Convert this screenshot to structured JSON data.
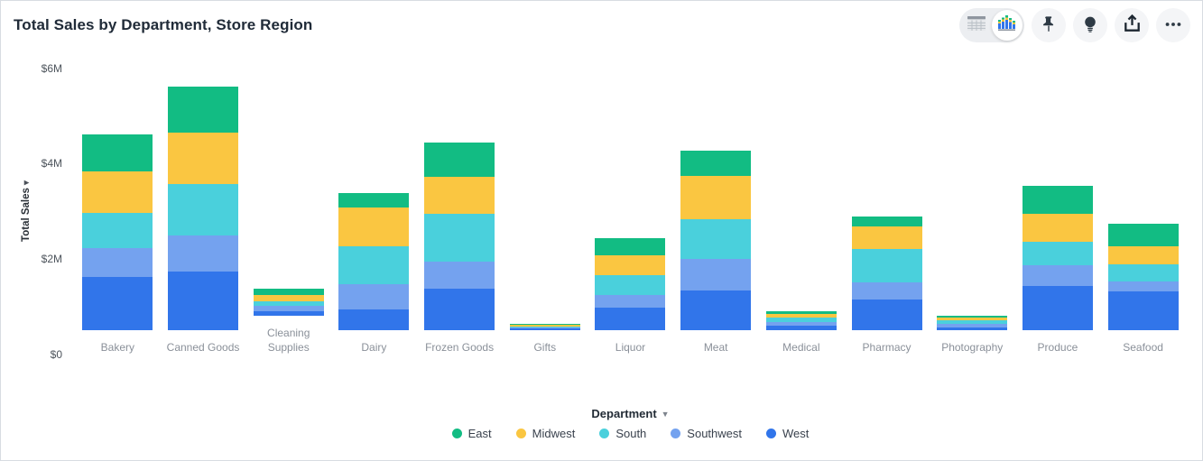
{
  "header": {
    "title": "Total Sales by Department, Store Region"
  },
  "toolbar": {
    "view_toggle": {
      "options": [
        "table-view",
        "chart-view"
      ],
      "selected": "chart-view"
    },
    "buttons": [
      "pin",
      "lightbulb",
      "share",
      "more-options"
    ]
  },
  "xaxis": {
    "label": "Department"
  },
  "yaxis": {
    "label": "Total Sales"
  },
  "chart_data": {
    "type": "bar",
    "stacked": true,
    "title": "Total Sales by Department, Store Region",
    "xlabel": "Department",
    "ylabel": "Total Sales",
    "value_unit": "$M",
    "ylim": [
      0,
      6
    ],
    "grid": false,
    "legend_position": "bottom",
    "yticks": [
      {
        "label": "$0",
        "value": 0
      },
      {
        "label": "$2M",
        "value": 2
      },
      {
        "label": "$4M",
        "value": 4
      },
      {
        "label": "$6M",
        "value": 6
      }
    ],
    "categories": [
      "Bakery",
      "Canned Goods",
      "Cleaning Supplies",
      "Dairy",
      "Frozen Goods",
      "Gifts",
      "Liquor",
      "Meat",
      "Medical",
      "Pharmacy",
      "Photography",
      "Produce",
      "Seafood"
    ],
    "stack_order_bottom_to_top": [
      "West",
      "Southwest",
      "South",
      "Midwest",
      "East"
    ],
    "series": [
      {
        "name": "East",
        "color": "#12BC83",
        "values": [
          0.77,
          0.96,
          0.13,
          0.29,
          0.72,
          0.03,
          0.35,
          0.53,
          0.05,
          0.22,
          0.03,
          0.58,
          0.47
        ]
      },
      {
        "name": "Midwest",
        "color": "#FAC641",
        "values": [
          0.87,
          1.08,
          0.14,
          0.81,
          0.76,
          0.03,
          0.42,
          0.92,
          0.08,
          0.47,
          0.06,
          0.6,
          0.38
        ]
      },
      {
        "name": "South",
        "color": "#4AD0DC",
        "values": [
          0.74,
          1.09,
          0.1,
          0.8,
          1.01,
          0.03,
          0.42,
          0.83,
          0.1,
          0.7,
          0.07,
          0.49,
          0.35
        ]
      },
      {
        "name": "Southwest",
        "color": "#74A2EF",
        "values": [
          0.61,
          0.75,
          0.1,
          0.54,
          0.56,
          0.02,
          0.26,
          0.66,
          0.08,
          0.36,
          0.08,
          0.44,
          0.22
        ]
      },
      {
        "name": "West",
        "color": "#3175EA",
        "values": [
          1.11,
          1.23,
          0.1,
          0.43,
          0.88,
          0.03,
          0.48,
          0.83,
          0.09,
          0.64,
          0.06,
          0.92,
          0.81
        ]
      }
    ],
    "totals": [
      4.1,
      5.11,
      0.57,
      2.87,
      3.93,
      0.14,
      1.93,
      3.77,
      0.4,
      2.39,
      0.3,
      3.03,
      2.23
    ]
  }
}
